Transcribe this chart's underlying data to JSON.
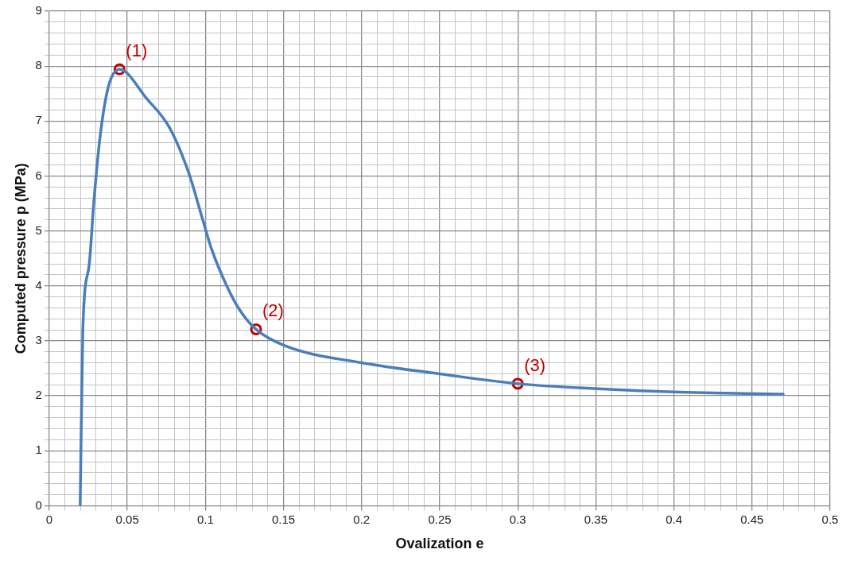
{
  "chart_data": {
    "type": "line",
    "xlabel": "Ovalization e",
    "ylabel": "Computed pressure p (MPa)",
    "series": [
      {
        "color": "#4a7ebb",
        "marker": "none",
        "x": [
          0.0198,
          0.0215,
          0.0256,
          0.0287,
          0.0327,
          0.038,
          0.045,
          0.0626,
          0.077,
          0.0894,
          0.0975,
          0.1037,
          0.114,
          0.122,
          0.1324,
          0.151,
          0.2,
          0.25,
          0.3,
          0.35,
          0.4,
          0.47
        ],
        "values": [
          0,
          3.21,
          4.39,
          5.58,
          6.75,
          7.64,
          7.94,
          7.4,
          6.88,
          6.05,
          5.28,
          4.69,
          3.98,
          3.56,
          3.21,
          2.91,
          2.6,
          2.4,
          2.22,
          2.13,
          2.07,
          2.03
        ]
      },
      {
        "type": "scatter",
        "color": "#c00000",
        "marker": "circle",
        "x": [
          0.045,
          0.1324,
          0.3
        ],
        "values": [
          7.94,
          3.21,
          2.22
        ]
      }
    ],
    "annotations": [
      {
        "text": "(1)",
        "x": 0.045,
        "y": 7.94
      },
      {
        "text": "(2)",
        "x": 0.1324,
        "y": 3.21
      },
      {
        "text": "(3)",
        "x": 0.3,
        "y": 2.22
      }
    ],
    "xlim": [
      0,
      0.5
    ],
    "ylim": [
      0,
      9
    ],
    "xticks": [
      0,
      {
        "value": 0.01,
        "label": null
      },
      {
        "value": 0.02,
        "label": null
      },
      {
        "value": 0.03,
        "label": null
      },
      {
        "value": 0.04,
        "label": null
      },
      0.05,
      {
        "value": 0.06,
        "label": null
      },
      {
        "value": 0.07,
        "label": null
      },
      {
        "value": 0.08,
        "label": null
      },
      {
        "value": 0.09,
        "label": null
      },
      0.1,
      {
        "value": 0.11,
        "label": null
      },
      {
        "value": 0.12,
        "label": null
      },
      {
        "value": 0.13,
        "label": null
      },
      {
        "value": 0.14,
        "label": null
      },
      0.15,
      {
        "value": 0.16,
        "label": null
      },
      {
        "value": 0.17,
        "label": null
      },
      {
        "value": 0.18,
        "label": null
      },
      {
        "value": 0.19,
        "label": null
      },
      0.2,
      {
        "value": 0.21,
        "label": null
      },
      {
        "value": 0.22,
        "label": null
      },
      {
        "value": 0.23,
        "label": null
      },
      {
        "value": 0.24,
        "label": null
      },
      0.25,
      {
        "value": 0.26,
        "label": null
      },
      {
        "value": 0.27,
        "label": null
      },
      {
        "value": 0.28,
        "label": null
      },
      {
        "value": 0.29,
        "label": null
      },
      0.3,
      {
        "value": 0.31,
        "label": null
      },
      {
        "value": 0.32,
        "label": null
      },
      {
        "value": 0.33,
        "label": null
      },
      {
        "value": 0.34,
        "label": null
      },
      0.35,
      {
        "value": 0.36,
        "label": null
      },
      {
        "value": 0.37,
        "label": null
      },
      {
        "value": 0.38,
        "label": null
      },
      {
        "value": 0.39,
        "label": null
      },
      0.4,
      {
        "value": 0.41,
        "label": null
      },
      {
        "value": 0.42,
        "label": null
      },
      {
        "value": 0.43,
        "label": null
      },
      {
        "value": 0.44,
        "label": null
      },
      0.45,
      {
        "value": 0.46,
        "label": null
      },
      {
        "value": 0.47,
        "label": null
      },
      {
        "value": 0.48,
        "label": null
      },
      {
        "value": 0.49,
        "label": null
      },
      0.5
    ],
    "yticks": [
      0,
      {
        "value": 0.2,
        "label": null
      },
      {
        "value": 0.4,
        "label": null
      },
      {
        "value": 0.6,
        "label": null
      },
      {
        "value": 0.8,
        "label": null
      },
      1,
      {
        "value": 1.2,
        "label": null
      },
      {
        "value": 1.4,
        "label": null
      },
      {
        "value": 1.6,
        "label": null
      },
      {
        "value": 1.8,
        "label": null
      },
      2,
      {
        "value": 2.2,
        "label": null
      },
      {
        "value": 2.4,
        "label": null
      },
      {
        "value": 2.6,
        "label": null
      },
      {
        "value": 2.8,
        "label": null
      },
      3,
      {
        "value": 3.2,
        "label": null
      },
      {
        "value": 3.4,
        "label": null
      },
      {
        "value": 3.6,
        "label": null
      },
      {
        "value": 3.8,
        "label": null
      },
      4,
      {
        "value": 4.2,
        "label": null
      },
      {
        "value": 4.4,
        "label": null
      },
      {
        "value": 4.6,
        "label": null
      },
      {
        "value": 4.8,
        "label": null
      },
      5,
      {
        "value": 5.2,
        "label": null
      },
      {
        "value": 5.4,
        "label": null
      },
      {
        "value": 5.6,
        "label": null
      },
      {
        "value": 5.8,
        "label": null
      },
      6,
      {
        "value": 6.2,
        "label": null
      },
      {
        "value": 6.4,
        "label": null
      },
      {
        "value": 6.6,
        "label": null
      },
      {
        "value": 6.8,
        "label": null
      },
      7,
      {
        "value": 7.2,
        "label": null
      },
      {
        "value": 7.4,
        "label": null
      },
      {
        "value": 7.6,
        "label": null
      },
      {
        "value": 7.8,
        "label": null
      },
      8,
      {
        "value": 8.2,
        "label": null
      },
      {
        "value": 8.4,
        "label": null
      },
      {
        "value": 8.6,
        "label": null
      },
      {
        "value": 8.8,
        "label": null
      },
      9
    ],
    "grid": true
  }
}
